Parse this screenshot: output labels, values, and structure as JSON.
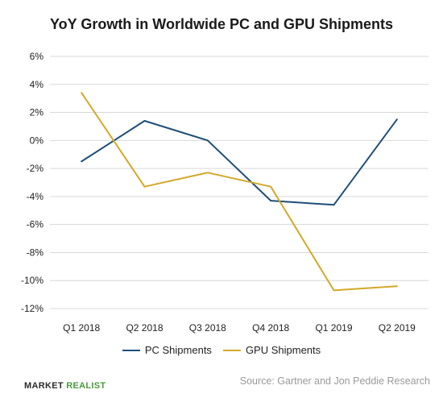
{
  "chart_data": {
    "type": "line",
    "title": "YoY Growth in Worldwide PC and GPU Shipments",
    "xlabel": "",
    "ylabel": "",
    "categories": [
      "Q1 2018",
      "Q2 2018",
      "Q3 2018",
      "Q4 2018",
      "Q1 2019",
      "Q2 2019"
    ],
    "ylim": [
      -12,
      6
    ],
    "yticks": [
      6,
      4,
      2,
      0,
      -2,
      -4,
      -6,
      -8,
      -10,
      -12
    ],
    "ytick_labels": [
      "6%",
      "4%",
      "2%",
      "0%",
      "-2%",
      "-4%",
      "-6%",
      "-8%",
      "-10%",
      "-12%"
    ],
    "grid": "horizontal",
    "legend_position": "bottom",
    "series": [
      {
        "name": "PC Shipments",
        "color": "#1f4e79",
        "values": [
          -1.5,
          1.4,
          0.0,
          -4.3,
          -4.6,
          1.5
        ]
      },
      {
        "name": "GPU Shipments",
        "color": "#d4a82a",
        "values": [
          3.4,
          -3.3,
          -2.3,
          -3.3,
          -10.7,
          -10.4
        ]
      }
    ]
  },
  "footer": {
    "brand_part1": "MARKET",
    "brand_part2": "REALIST",
    "source": "Source: Gartner and Jon Peddie Research"
  }
}
